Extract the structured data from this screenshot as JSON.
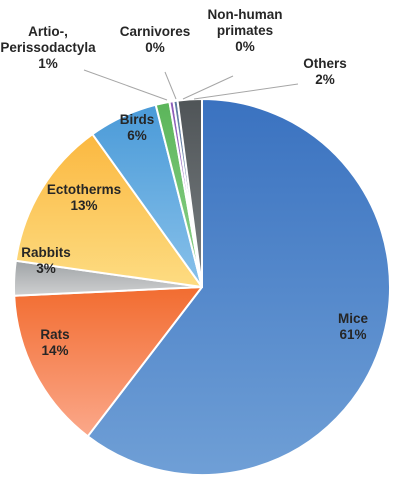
{
  "chart_data": {
    "type": "pie",
    "title": "",
    "start_angle_deg": 0,
    "direction": "clockwise",
    "slices": [
      {
        "name": "Mice",
        "value": 61,
        "label": "61%",
        "colors": [
          "#6f9fd6",
          "#3a72c0"
        ]
      },
      {
        "name": "Rats",
        "value": 14,
        "label": "14%",
        "colors": [
          "#fba88a",
          "#f26c30"
        ]
      },
      {
        "name": "Rabbits",
        "value": 3,
        "label": "3%",
        "colors": [
          "#cfd0d1",
          "#9fa3a6"
        ]
      },
      {
        "name": "Ectotherms",
        "value": 13,
        "label": "13%",
        "colors": [
          "#fddc82",
          "#fbb840"
        ]
      },
      {
        "name": "Birds",
        "value": 6,
        "label": "6%",
        "colors": [
          "#88c1ea",
          "#4a9ad8"
        ]
      },
      {
        "name": "Artio-, Perissodactyla",
        "value": 1.2,
        "label": "1%",
        "colors": [
          "#8fd28c",
          "#5bb55a"
        ]
      },
      {
        "name": "Carnivores",
        "value": 0.35,
        "label": "0%",
        "colors": [
          "#b48ad6",
          "#8a5cb8"
        ]
      },
      {
        "name": "Non-human primates",
        "value": 0.35,
        "label": "0%",
        "colors": [
          "#8da2c2",
          "#5d7aa0"
        ]
      },
      {
        "name": "Others",
        "value": 2.1,
        "label": "2%",
        "colors": [
          "#7a8083",
          "#4f5457"
        ]
      }
    ],
    "text_labels": [
      {
        "lines": [
          "Mice",
          "61%"
        ]
      },
      {
        "lines": [
          "Rats",
          "14%"
        ]
      },
      {
        "lines": [
          "Rabbits",
          "3%"
        ]
      },
      {
        "lines": [
          "Ectotherms",
          "13%"
        ]
      },
      {
        "lines": [
          "Birds",
          "6%"
        ]
      },
      {
        "lines": [
          "Artio-,",
          "Perissodactyla",
          "1%"
        ]
      },
      {
        "lines": [
          "Carnivores",
          "0%"
        ]
      },
      {
        "lines": [
          "Non-human",
          "primates",
          "0%"
        ]
      },
      {
        "lines": [
          "Others",
          "2%"
        ]
      }
    ]
  }
}
